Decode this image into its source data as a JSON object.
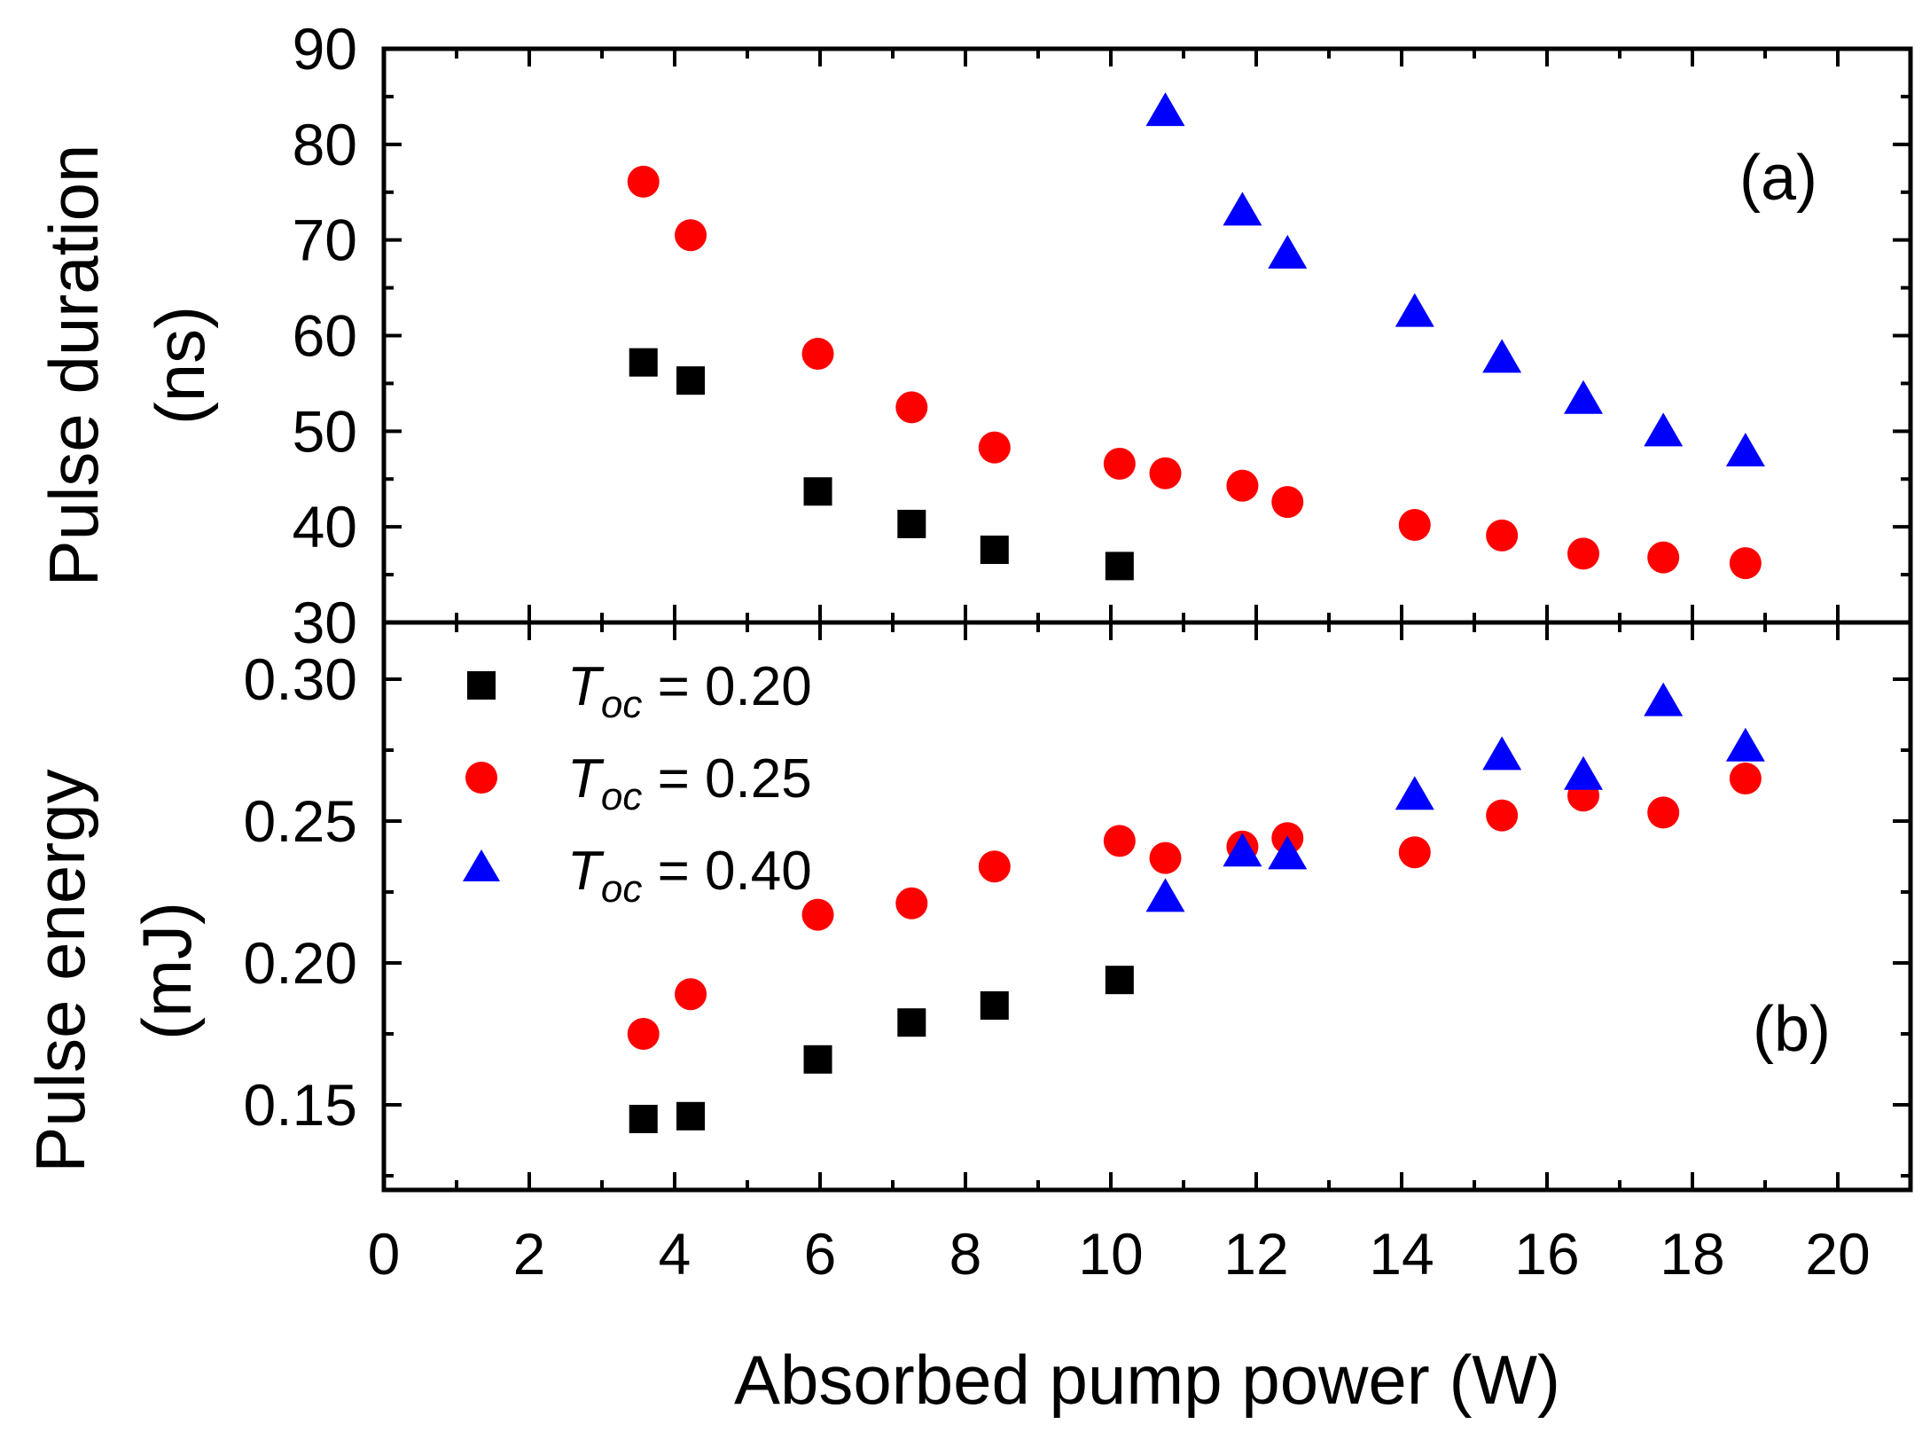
{
  "chart_data": {
    "type": "scatter",
    "xlabel": "Absorbed pump power (W)",
    "xlim": [
      0,
      21
    ],
    "xticks": [
      "0",
      "2",
      "4",
      "6",
      "8",
      "10",
      "12",
      "14",
      "16",
      "18",
      "20"
    ],
    "colors": {
      "T020": "#000000",
      "T025": "#ff0000",
      "T040": "#0000ff"
    },
    "legend": {
      "position": "upper-left of panel (b)",
      "entries": [
        {
          "symbol": "T",
          "sub": "oc",
          "rest": " = 0.20",
          "marker": "square"
        },
        {
          "symbol": "T",
          "sub": "oc",
          "rest": " = 0.25",
          "marker": "circle"
        },
        {
          "symbol": "T",
          "sub": "oc",
          "rest": " = 0.40",
          "marker": "triangle"
        }
      ]
    },
    "panels": [
      {
        "id": "a",
        "label": "(a)",
        "ylabel_line1": "Pulse duration",
        "ylabel_line2": "(ns)",
        "ylim": [
          30,
          90
        ],
        "yticks": [
          "30",
          "40",
          "50",
          "60",
          "70",
          "80",
          "90"
        ],
        "series": [
          {
            "name": "Toc = 0.20",
            "x": [
              3.57,
              4.22,
              5.97,
              7.26,
              8.4,
              10.12
            ],
            "y": [
              57.2,
              55.3,
              43.7,
              40.3,
              37.6,
              35.9
            ]
          },
          {
            "name": "Toc = 0.25",
            "x": [
              3.57,
              4.22,
              5.97,
              7.26,
              8.4,
              10.12,
              10.75,
              11.81,
              12.43,
              14.18,
              15.38,
              16.5,
              17.6,
              18.73
            ],
            "y": [
              76.1,
              70.5,
              58.1,
              52.5,
              48.3,
              46.6,
              45.6,
              44.3,
              42.6,
              40.2,
              39.1,
              37.2,
              36.8,
              36.2
            ]
          },
          {
            "name": "Toc = 0.40",
            "x": [
              10.75,
              11.81,
              12.43,
              14.18,
              15.38,
              16.5,
              17.6,
              18.73
            ],
            "y": [
              83.4,
              73.0,
              68.5,
              62.4,
              57.6,
              53.3,
              49.9,
              47.8
            ]
          }
        ]
      },
      {
        "id": "b",
        "label": "(b)",
        "ylabel_line1": "Pulse energy",
        "ylabel_line2": "(mJ)",
        "ylim": [
          0.12,
          0.32
        ],
        "yticks": [
          "0.15",
          "0.20",
          "0.25",
          "0.30"
        ],
        "series": [
          {
            "name": "Toc = 0.20",
            "x": [
              3.57,
              4.22,
              5.97,
              7.26,
              8.4,
              10.12
            ],
            "y": [
              0.145,
              0.146,
              0.166,
              0.179,
              0.185,
              0.194
            ]
          },
          {
            "name": "Toc = 0.25",
            "x": [
              3.57,
              4.22,
              5.97,
              7.26,
              8.4,
              10.12,
              10.75,
              11.81,
              12.43,
              14.18,
              15.38,
              16.5,
              17.6,
              18.73
            ],
            "y": [
              0.175,
              0.189,
              0.217,
              0.221,
              0.234,
              0.243,
              0.237,
              0.241,
              0.244,
              0.239,
              0.252,
              0.259,
              0.253,
              0.265
            ]
          },
          {
            "name": "Toc = 0.40",
            "x": [
              10.75,
              11.81,
              12.43,
              14.18,
              15.38,
              16.5,
              17.6,
              18.73
            ],
            "y": [
              0.223,
              0.239,
              0.238,
              0.259,
              0.273,
              0.266,
              0.292,
              0.276
            ]
          }
        ]
      }
    ]
  }
}
